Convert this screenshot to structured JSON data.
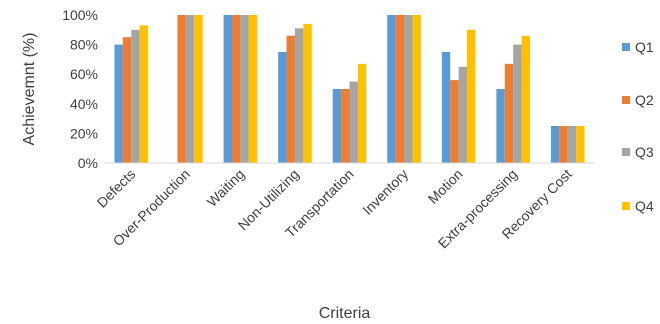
{
  "chart_data": {
    "type": "bar",
    "title": "",
    "xlabel": "Criteria",
    "ylabel": "Achievemnt (%)",
    "ylim": [
      0,
      100
    ],
    "yticks": [
      0,
      20,
      40,
      60,
      80,
      100
    ],
    "ytick_labels": [
      "0%",
      "20%",
      "40%",
      "60%",
      "80%",
      "100%"
    ],
    "categories": [
      "Defects",
      "Over-Production",
      "Waiting",
      "Non-Utilizing",
      "Transportation",
      "Inventory",
      "Motion",
      "Extra-processing",
      "Recovery Cost"
    ],
    "series": [
      {
        "name": "Q1",
        "color": "#5B9BD5",
        "values": [
          80,
          0,
          100,
          75,
          50,
          100,
          75,
          50,
          25
        ]
      },
      {
        "name": "Q2",
        "color": "#ED7D31",
        "values": [
          85,
          100,
          100,
          86,
          50,
          100,
          56,
          67,
          25
        ]
      },
      {
        "name": "Q3",
        "color": "#A5A5A5",
        "values": [
          90,
          100,
          100,
          91,
          55,
          100,
          65,
          80,
          25
        ]
      },
      {
        "name": "Q4",
        "color": "#FFC000",
        "values": [
          93,
          100,
          100,
          94,
          67,
          100,
          90,
          86,
          25
        ]
      }
    ],
    "grid": false,
    "legend_position": "right"
  }
}
